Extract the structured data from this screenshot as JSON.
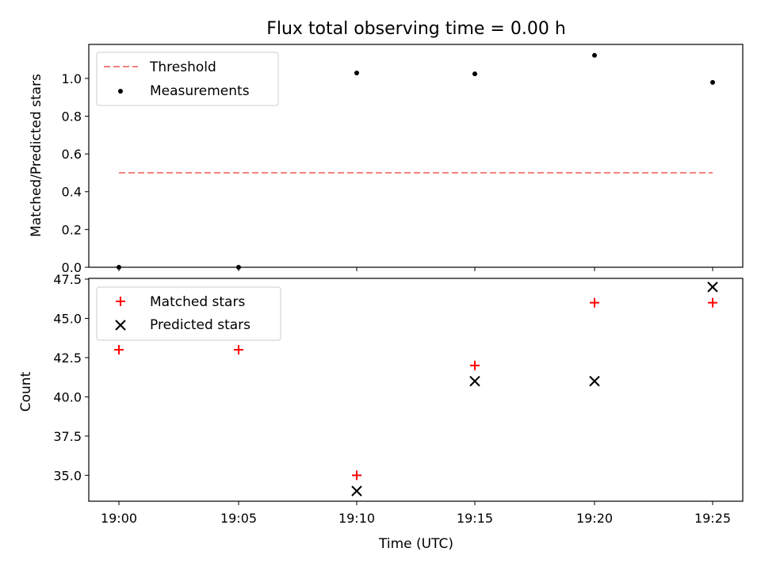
{
  "title": "Flux total observing time = 0.00 h",
  "chart_data": [
    {
      "type": "scatter",
      "ylabel": "Matched/Predicted stars",
      "ylim": [
        0,
        1.18
      ],
      "yticks": [
        "0.0",
        "0.2",
        "0.4",
        "0.6",
        "0.8",
        "1.0"
      ],
      "x": [
        "19:00",
        "19:05",
        "19:10",
        "19:15",
        "19:20",
        "19:25"
      ],
      "threshold": {
        "name": "Threshold",
        "value": 0.5,
        "color": "#f08080"
      },
      "series": [
        {
          "name": "Measurements",
          "color": "#000000",
          "marker": "dot",
          "values": [
            0.0,
            0.0,
            1.029,
            1.024,
            1.122,
            0.979
          ]
        }
      ],
      "legend": "top-left",
      "grid": false
    },
    {
      "type": "scatter",
      "xlabel": "Time (UTC)",
      "ylabel": "Count",
      "ylim": [
        33.35,
        47.55
      ],
      "yticks": [
        "35.0",
        "37.5",
        "40.0",
        "42.5",
        "45.0",
        "47.5"
      ],
      "x": [
        "19:00",
        "19:05",
        "19:10",
        "19:15",
        "19:20",
        "19:25"
      ],
      "series": [
        {
          "name": "Matched stars",
          "color": "#ff0000",
          "marker": "plus",
          "values": [
            43,
            43,
            35,
            42,
            46,
            46
          ]
        },
        {
          "name": "Predicted stars",
          "color": "#000000",
          "marker": "x",
          "values": [
            null,
            null,
            34,
            41,
            41,
            47
          ]
        }
      ],
      "legend": "top-left",
      "grid": false
    }
  ]
}
